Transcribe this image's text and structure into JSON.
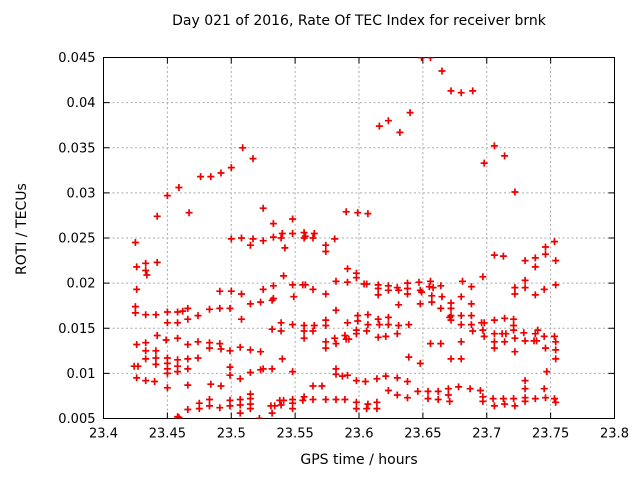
{
  "chart": {
    "title": "Day 021 of 2016, Rate Of TEC Index for receiver brnk",
    "xlabel": "GPS time / hours",
    "ylabel": "ROTI / TECUs"
  },
  "colors": {
    "marker": "#ee0000",
    "grid": "#aaaaaa",
    "axis": "#000000",
    "background": "#ffffff",
    "text": "#000000"
  },
  "chart_data": {
    "type": "scatter",
    "title": "Day 021 of 2016, Rate Of TEC Index for receiver brnk",
    "xlabel": "GPS time / hours",
    "ylabel": "ROTI / TECUs",
    "xlim": [
      23.4,
      23.8
    ],
    "ylim": [
      0.005,
      0.045
    ],
    "x_tick_values": [
      23.4,
      23.45,
      23.5,
      23.55,
      23.6,
      23.65,
      23.7,
      23.75,
      23.8
    ],
    "x_tick_labels": [
      "23.4",
      "23.45",
      "23.5",
      "23.55",
      "23.6",
      "23.65",
      "23.7",
      "23.75",
      "23.8"
    ],
    "y_tick_values": [
      0.005,
      0.01,
      0.015,
      0.02,
      0.025,
      0.03,
      0.035,
      0.04,
      0.045
    ],
    "y_tick_labels": [
      "0.005",
      "0.01",
      "0.015",
      "0.02",
      "0.025",
      "0.03",
      "0.035",
      "0.04",
      "0.045"
    ],
    "grid": true,
    "legend": false,
    "marker": {
      "shape": "plus",
      "color": "#ee0000",
      "size": 7
    },
    "points": [
      [
        23.649,
        0.045
      ],
      [
        23.656,
        0.045
      ],
      [
        23.665,
        0.0435
      ],
      [
        23.672,
        0.0413
      ],
      [
        23.689,
        0.0413
      ],
      [
        23.68,
        0.0411
      ],
      [
        23.64,
        0.0389
      ],
      [
        23.623,
        0.038
      ],
      [
        23.616,
        0.0374
      ],
      [
        23.632,
        0.0367
      ],
      [
        23.706,
        0.0352
      ],
      [
        23.509,
        0.035
      ],
      [
        23.714,
        0.0341
      ],
      [
        23.517,
        0.0338
      ],
      [
        23.698,
        0.0333
      ],
      [
        23.5,
        0.0328
      ],
      [
        23.492,
        0.0322
      ],
      [
        23.476,
        0.0318
      ],
      [
        23.484,
        0.0318
      ],
      [
        23.459,
        0.0306
      ],
      [
        23.722,
        0.0301
      ],
      [
        23.45,
        0.0297
      ],
      [
        23.525,
        0.0283
      ],
      [
        23.59,
        0.0279
      ],
      [
        23.467,
        0.0278
      ],
      [
        23.599,
        0.0278
      ],
      [
        23.607,
        0.0277
      ],
      [
        23.442,
        0.0274
      ],
      [
        23.548,
        0.0271
      ],
      [
        23.533,
        0.0266
      ],
      [
        23.54,
        0.0255
      ],
      [
        23.548,
        0.0255
      ],
      [
        23.557,
        0.0256
      ],
      [
        23.565,
        0.0255
      ],
      [
        23.558,
        0.0252
      ],
      [
        23.533,
        0.0251
      ],
      [
        23.508,
        0.025
      ],
      [
        23.539,
        0.025
      ],
      [
        23.557,
        0.025
      ],
      [
        23.564,
        0.025
      ],
      [
        23.5,
        0.0249
      ],
      [
        23.517,
        0.0249
      ],
      [
        23.581,
        0.0249
      ],
      [
        23.525,
        0.0247
      ],
      [
        23.753,
        0.0246
      ],
      [
        23.425,
        0.0245
      ],
      [
        23.515,
        0.0242
      ],
      [
        23.574,
        0.0242
      ],
      [
        23.746,
        0.024
      ],
      [
        23.542,
        0.0239
      ],
      [
        23.574,
        0.0235
      ],
      [
        23.746,
        0.0232
      ],
      [
        23.706,
        0.0231
      ],
      [
        23.713,
        0.023
      ],
      [
        23.738,
        0.0228
      ],
      [
        23.73,
        0.0225
      ],
      [
        23.754,
        0.0225
      ],
      [
        23.442,
        0.0223
      ],
      [
        23.433,
        0.0222
      ],
      [
        23.426,
        0.0218
      ],
      [
        23.738,
        0.0218
      ],
      [
        23.591,
        0.0216
      ],
      [
        23.433,
        0.0214
      ],
      [
        23.598,
        0.0211
      ],
      [
        23.434,
        0.0209
      ],
      [
        23.541,
        0.0208
      ],
      [
        23.697,
        0.0207
      ],
      [
        23.598,
        0.0206
      ],
      [
        23.681,
        0.0202
      ],
      [
        23.73,
        0.0203
      ],
      [
        23.582,
        0.0202
      ],
      [
        23.656,
        0.0202
      ],
      [
        23.647,
        0.0201
      ],
      [
        23.591,
        0.0201
      ],
      [
        23.638,
        0.02
      ],
      [
        23.604,
        0.0199
      ],
      [
        23.606,
        0.0199
      ],
      [
        23.548,
        0.0198
      ],
      [
        23.556,
        0.0198
      ],
      [
        23.558,
        0.0198
      ],
      [
        23.615,
        0.0198
      ],
      [
        23.754,
        0.0198
      ],
      [
        23.533,
        0.0197
      ],
      [
        23.623,
        0.0197
      ],
      [
        23.664,
        0.0197
      ],
      [
        23.688,
        0.0196
      ],
      [
        23.655,
        0.0196
      ],
      [
        23.63,
        0.0195
      ],
      [
        23.658,
        0.0195
      ],
      [
        23.722,
        0.0195
      ],
      [
        23.73,
        0.0195
      ],
      [
        23.615,
        0.0194
      ],
      [
        23.638,
        0.0194
      ],
      [
        23.426,
        0.0193
      ],
      [
        23.525,
        0.0193
      ],
      [
        23.564,
        0.0193
      ],
      [
        23.745,
        0.0193
      ],
      [
        23.491,
        0.0191
      ],
      [
        23.5,
        0.0191
      ],
      [
        23.623,
        0.0192
      ],
      [
        23.631,
        0.0192
      ],
      [
        23.648,
        0.0192
      ],
      [
        23.649,
        0.019
      ],
      [
        23.508,
        0.0188
      ],
      [
        23.574,
        0.0188
      ],
      [
        23.615,
        0.0187
      ],
      [
        23.638,
        0.0188
      ],
      [
        23.722,
        0.0188
      ],
      [
        23.738,
        0.0187
      ],
      [
        23.657,
        0.0186
      ],
      [
        23.549,
        0.0185
      ],
      [
        23.665,
        0.0185
      ],
      [
        23.68,
        0.0185
      ],
      [
        23.533,
        0.0183
      ],
      [
        23.532,
        0.0181
      ],
      [
        23.523,
        0.0179
      ],
      [
        23.657,
        0.0179
      ],
      [
        23.672,
        0.0178
      ],
      [
        23.515,
        0.0177
      ],
      [
        23.648,
        0.0177
      ],
      [
        23.688,
        0.0177
      ],
      [
        23.631,
        0.0176
      ],
      [
        23.425,
        0.0174
      ],
      [
        23.466,
        0.0172
      ],
      [
        23.491,
        0.0172
      ],
      [
        23.499,
        0.0172
      ],
      [
        23.664,
        0.0172
      ],
      [
        23.672,
        0.0172
      ],
      [
        23.483,
        0.0171
      ],
      [
        23.582,
        0.017
      ],
      [
        23.462,
        0.0169
      ],
      [
        23.45,
        0.0168
      ],
      [
        23.458,
        0.0168
      ],
      [
        23.425,
        0.0167
      ],
      [
        23.433,
        0.0165
      ],
      [
        23.441,
        0.0165
      ],
      [
        23.607,
        0.0165
      ],
      [
        23.474,
        0.0164
      ],
      [
        23.599,
        0.0164
      ],
      [
        23.672,
        0.0164
      ],
      [
        23.68,
        0.0164
      ],
      [
        23.688,
        0.0164
      ],
      [
        23.623,
        0.0162
      ],
      [
        23.671,
        0.0162
      ],
      [
        23.466,
        0.016
      ],
      [
        23.508,
        0.016
      ],
      [
        23.615,
        0.016
      ],
      [
        23.721,
        0.016
      ],
      [
        23.714,
        0.0161
      ],
      [
        23.672,
        0.0159
      ],
      [
        23.574,
        0.0159
      ],
      [
        23.706,
        0.0159
      ],
      [
        23.599,
        0.0158
      ],
      [
        23.45,
        0.0156
      ],
      [
        23.458,
        0.0156
      ],
      [
        23.539,
        0.0156
      ],
      [
        23.591,
        0.0156
      ],
      [
        23.696,
        0.0156
      ],
      [
        23.698,
        0.0156
      ],
      [
        23.548,
        0.0154
      ],
      [
        23.607,
        0.0154
      ],
      [
        23.616,
        0.0154
      ],
      [
        23.623,
        0.0154
      ],
      [
        23.639,
        0.0154
      ],
      [
        23.68,
        0.0154
      ],
      [
        23.688,
        0.0154
      ],
      [
        23.557,
        0.0153
      ],
      [
        23.565,
        0.0153
      ],
      [
        23.574,
        0.0153
      ],
      [
        23.631,
        0.0153
      ],
      [
        23.721,
        0.0153
      ],
      [
        23.532,
        0.0149
      ],
      [
        23.74,
        0.0148
      ],
      [
        23.598,
        0.0148
      ],
      [
        23.697,
        0.0148
      ],
      [
        23.721,
        0.0148
      ],
      [
        23.539,
        0.0147
      ],
      [
        23.557,
        0.0147
      ],
      [
        23.564,
        0.0147
      ],
      [
        23.606,
        0.0147
      ],
      [
        23.689,
        0.0147
      ],
      [
        23.598,
        0.0144
      ],
      [
        23.63,
        0.0144
      ],
      [
        23.706,
        0.0144
      ],
      [
        23.712,
        0.0144
      ],
      [
        23.715,
        0.0144
      ],
      [
        23.729,
        0.0145
      ],
      [
        23.738,
        0.0144
      ],
      [
        23.442,
        0.0142
      ],
      [
        23.589,
        0.0142
      ],
      [
        23.615,
        0.014
      ],
      [
        23.621,
        0.0141
      ],
      [
        23.698,
        0.0141
      ],
      [
        23.745,
        0.0141
      ],
      [
        23.753,
        0.0141
      ],
      [
        23.449,
        0.0137
      ],
      [
        23.458,
        0.0139
      ],
      [
        23.557,
        0.0139
      ],
      [
        23.581,
        0.0139
      ],
      [
        23.59,
        0.0138
      ],
      [
        23.592,
        0.0138
      ],
      [
        23.722,
        0.0139
      ],
      [
        23.73,
        0.0136
      ],
      [
        23.737,
        0.0136
      ],
      [
        23.739,
        0.0136
      ],
      [
        23.474,
        0.0135
      ],
      [
        23.574,
        0.0135
      ],
      [
        23.68,
        0.0135
      ],
      [
        23.706,
        0.0135
      ],
      [
        23.714,
        0.0135
      ],
      [
        23.754,
        0.0135
      ],
      [
        23.433,
        0.0134
      ],
      [
        23.483,
        0.0134
      ],
      [
        23.491,
        0.0133
      ],
      [
        23.582,
        0.0133
      ],
      [
        23.656,
        0.0133
      ],
      [
        23.664,
        0.0133
      ],
      [
        23.426,
        0.0132
      ],
      [
        23.466,
        0.0132
      ],
      [
        23.507,
        0.0129
      ],
      [
        23.483,
        0.0128
      ],
      [
        23.574,
        0.0128
      ],
      [
        23.706,
        0.0128
      ],
      [
        23.746,
        0.0128
      ],
      [
        23.492,
        0.0127
      ],
      [
        23.515,
        0.0126
      ],
      [
        23.754,
        0.0126
      ],
      [
        23.433,
        0.0125
      ],
      [
        23.441,
        0.0125
      ],
      [
        23.499,
        0.0125
      ],
      [
        23.523,
        0.0124
      ],
      [
        23.722,
        0.0124
      ],
      [
        23.639,
        0.0118
      ],
      [
        23.441,
        0.0117
      ],
      [
        23.45,
        0.0117
      ],
      [
        23.474,
        0.0117
      ],
      [
        23.433,
        0.0116
      ],
      [
        23.466,
        0.0116
      ],
      [
        23.54,
        0.0116
      ],
      [
        23.672,
        0.0116
      ],
      [
        23.68,
        0.0116
      ],
      [
        23.754,
        0.0116
      ],
      [
        23.458,
        0.0115
      ],
      [
        23.45,
        0.0111
      ],
      [
        23.648,
        0.0111
      ],
      [
        23.441,
        0.011
      ],
      [
        23.424,
        0.0108
      ],
      [
        23.427,
        0.0108
      ],
      [
        23.458,
        0.0108
      ],
      [
        23.499,
        0.0107
      ],
      [
        23.45,
        0.0105
      ],
      [
        23.466,
        0.0105
      ],
      [
        23.525,
        0.0105
      ],
      [
        23.532,
        0.0105
      ],
      [
        23.582,
        0.0105
      ],
      [
        23.523,
        0.0104
      ],
      [
        23.458,
        0.0102
      ],
      [
        23.548,
        0.0102
      ],
      [
        23.747,
        0.0102
      ],
      [
        23.515,
        0.0101
      ],
      [
        23.45,
        0.01
      ],
      [
        23.582,
        0.0099
      ],
      [
        23.499,
        0.0098
      ],
      [
        23.587,
        0.0097
      ],
      [
        23.621,
        0.0097
      ],
      [
        23.426,
        0.0095
      ],
      [
        23.63,
        0.0095
      ],
      [
        23.507,
        0.0094
      ],
      [
        23.614,
        0.0094
      ],
      [
        23.433,
        0.0092
      ],
      [
        23.598,
        0.0092
      ],
      [
        23.73,
        0.0092
      ],
      [
        23.44,
        0.0091
      ],
      [
        23.591,
        0.0098
      ],
      [
        23.605,
        0.0091
      ],
      [
        23.638,
        0.0091
      ],
      [
        23.484,
        0.0088
      ],
      [
        23.466,
        0.0087
      ],
      [
        23.492,
        0.0086
      ],
      [
        23.564,
        0.0086
      ],
      [
        23.571,
        0.0086
      ],
      [
        23.678,
        0.0085
      ],
      [
        23.45,
        0.0084
      ],
      [
        23.67,
        0.0083
      ],
      [
        23.687,
        0.0083
      ],
      [
        23.73,
        0.0083
      ],
      [
        23.745,
        0.0083
      ],
      [
        23.623,
        0.0081
      ],
      [
        23.695,
        0.0081
      ],
      [
        23.646,
        0.008
      ],
      [
        23.654,
        0.008
      ],
      [
        23.662,
        0.008
      ],
      [
        23.515,
        0.0077
      ],
      [
        23.63,
        0.0076
      ],
      [
        23.67,
        0.0076
      ],
      [
        23.557,
        0.0074
      ],
      [
        23.697,
        0.0074
      ],
      [
        23.638,
        0.0073
      ],
      [
        23.73,
        0.0073
      ],
      [
        23.746,
        0.0073
      ],
      [
        23.515,
        0.0072
      ],
      [
        23.654,
        0.0072
      ],
      [
        23.705,
        0.0072
      ],
      [
        23.713,
        0.0072
      ],
      [
        23.721,
        0.0072
      ],
      [
        23.738,
        0.0072
      ],
      [
        23.753,
        0.0072
      ],
      [
        23.483,
        0.0071
      ],
      [
        23.507,
        0.0071
      ],
      [
        23.548,
        0.0071
      ],
      [
        23.556,
        0.007
      ],
      [
        23.564,
        0.0071
      ],
      [
        23.574,
        0.0071
      ],
      [
        23.582,
        0.0071
      ],
      [
        23.589,
        0.0071
      ],
      [
        23.662,
        0.0071
      ],
      [
        23.538,
        0.007
      ],
      [
        23.541,
        0.007
      ],
      [
        23.499,
        0.007
      ],
      [
        23.697,
        0.0069
      ],
      [
        23.671,
        0.0069
      ],
      [
        23.73,
        0.0069
      ],
      [
        23.598,
        0.0068
      ],
      [
        23.614,
        0.0068
      ],
      [
        23.754,
        0.0068
      ],
      [
        23.475,
        0.0067
      ],
      [
        23.548,
        0.0067
      ],
      [
        23.607,
        0.0066
      ],
      [
        23.714,
        0.0066
      ],
      [
        23.515,
        0.0066
      ],
      [
        23.507,
        0.0065
      ],
      [
        23.539,
        0.0065
      ],
      [
        23.483,
        0.0064
      ],
      [
        23.499,
        0.0064
      ],
      [
        23.531,
        0.0064
      ],
      [
        23.534,
        0.0064
      ],
      [
        23.706,
        0.0064
      ],
      [
        23.722,
        0.0064
      ],
      [
        23.491,
        0.0062
      ],
      [
        23.466,
        0.006
      ],
      [
        23.475,
        0.0061
      ],
      [
        23.515,
        0.0061
      ],
      [
        23.548,
        0.0061
      ],
      [
        23.598,
        0.0061
      ],
      [
        23.606,
        0.0061
      ],
      [
        23.614,
        0.0061
      ],
      [
        23.507,
        0.0056
      ],
      [
        23.532,
        0.0056
      ],
      [
        23.458,
        0.0052
      ],
      [
        23.459,
        0.0051
      ],
      [
        23.522,
        0.005
      ]
    ]
  }
}
